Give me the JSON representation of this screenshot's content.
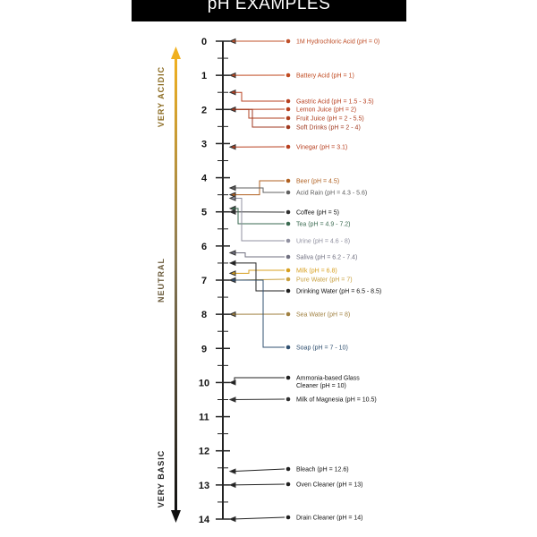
{
  "title": "pH EXAMPLES",
  "side_labels": {
    "acidic": "VERY ACIDIC",
    "neutral": "NEUTRAL",
    "basic": "VERY BASIC"
  },
  "colors": {
    "acid": "#e8a020",
    "neutral": "#7a6a4a",
    "base": "#1a1a1a",
    "line": "#222222"
  },
  "scale": {
    "min": 0,
    "max": 14,
    "ticks": [
      "0",
      "1",
      "2",
      "3",
      "4",
      "5",
      "6",
      "7",
      "8",
      "9",
      "10",
      "11",
      "12",
      "13",
      "14"
    ]
  },
  "examples": [
    {
      "label": "1M Hydrochloric Acid (pH = 0)",
      "ph": 0,
      "color": "#c0502a"
    },
    {
      "label": "Battery Acid (pH = 1)",
      "ph": 1,
      "color": "#c04a20"
    },
    {
      "label": "Gastric Acid (pH = 1.5 - 3.5)",
      "ph": 1.5,
      "color": "#b84020"
    },
    {
      "label": "Lemon Juice (pH = 2)",
      "ph": 2,
      "color": "#b84020"
    },
    {
      "label": "Fruit Juice (pH = 2 - 5.5)",
      "ph": 2,
      "color": "#b04020"
    },
    {
      "label": "Soft Drinks (pH = 2 - 4)",
      "ph": 2,
      "color": "#a03a20"
    },
    {
      "label": "Vinegar (pH = 3.1)",
      "ph": 3.1,
      "color": "#b84020"
    },
    {
      "label": "Beer (pH = 4.5)",
      "ph": 4.5,
      "color": "#b06020"
    },
    {
      "label": "Acid Rain (pH = 4.3 - 5.6)",
      "ph": 4.3,
      "color": "#606060"
    },
    {
      "label": "Coffee (pH = 5)",
      "ph": 5,
      "color": "#303030"
    },
    {
      "label": "Tea (pH = 4.9 - 7.2)",
      "ph": 4.9,
      "color": "#3a6a50"
    },
    {
      "label": "Urine (pH = 4.6 - 8)",
      "ph": 4.6,
      "color": "#9090a0"
    },
    {
      "label": "Saliva (pH = 6.2 - 7.4)",
      "ph": 6.2,
      "color": "#707080"
    },
    {
      "label": "Milk (pH = 6.8)",
      "ph": 6.8,
      "color": "#d8a020"
    },
    {
      "label": "Pure Water (pH = 7)",
      "ph": 7,
      "color": "#c8a040"
    },
    {
      "label": "Drinking Water (pH = 6.5 - 8.5)",
      "ph": 6.5,
      "color": "#202020"
    },
    {
      "label": "Sea Water (pH = 8)",
      "ph": 8,
      "color": "#a08040"
    },
    {
      "label": "Soap (pH = 7 - 10)",
      "ph": 7,
      "color": "#305070"
    },
    {
      "label": "Ammonia-based Glass",
      "label2": "Cleaner (pH = 10)",
      "ph": 10,
      "color": "#202020"
    },
    {
      "label": "Milk of Magnesia (pH = 10.5)",
      "ph": 10.5,
      "color": "#303030"
    },
    {
      "label": "Bleach (pH = 12.6)",
      "ph": 12.6,
      "color": "#202020"
    },
    {
      "label": "Oven Cleaner (pH = 13)",
      "ph": 13,
      "color": "#202020"
    },
    {
      "label": "Drain Cleaner (pH = 14)",
      "ph": 14,
      "color": "#202020"
    }
  ]
}
